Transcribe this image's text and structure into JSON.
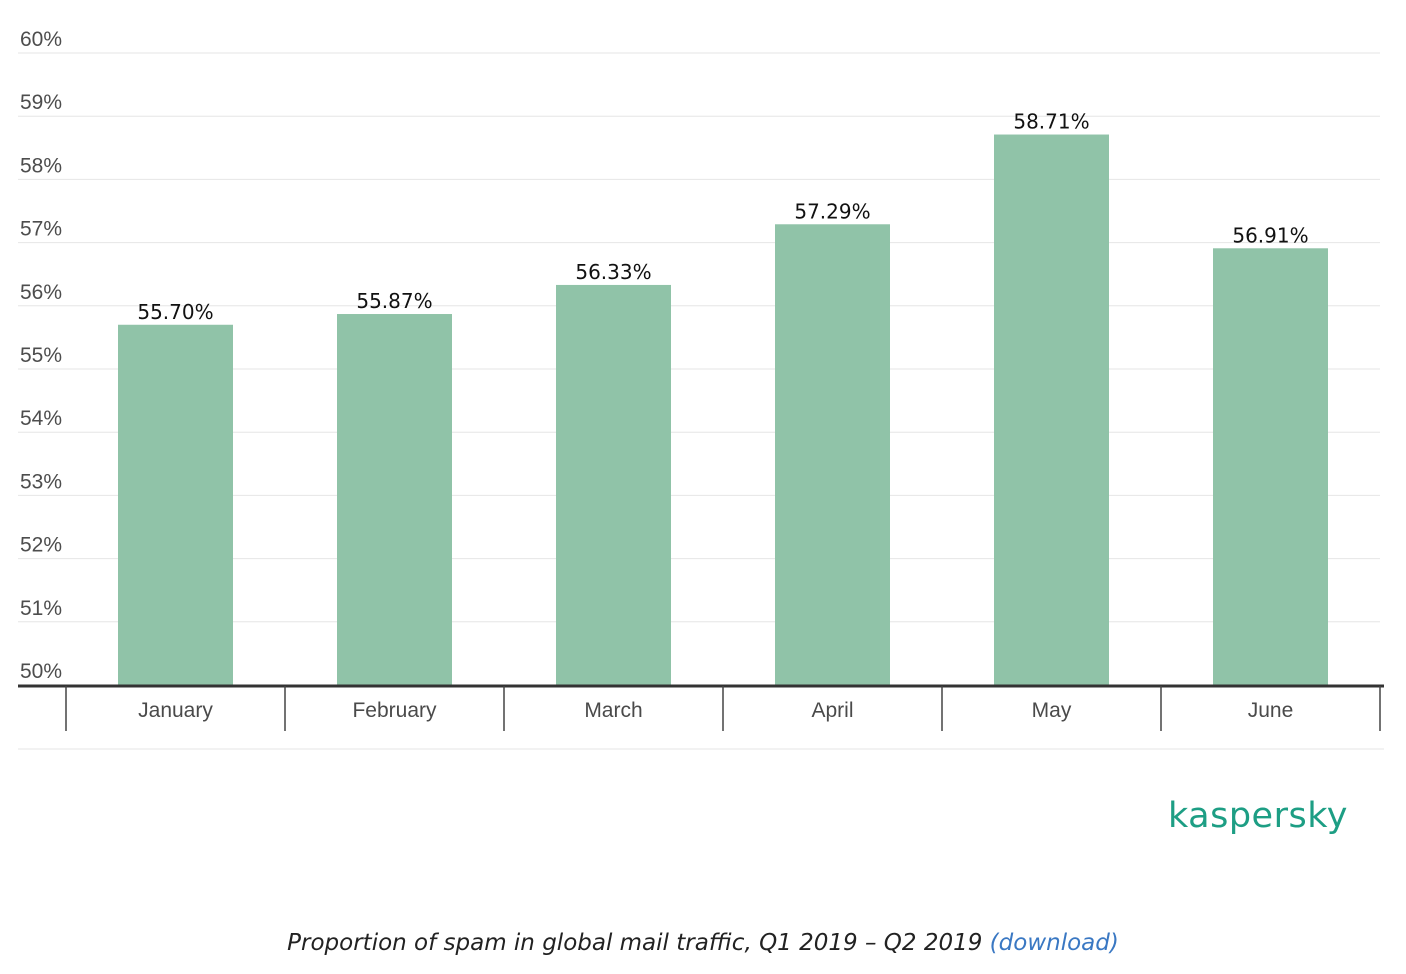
{
  "chart_data": {
    "type": "bar",
    "categories": [
      "January",
      "February",
      "March",
      "April",
      "May",
      "June"
    ],
    "values": [
      55.7,
      55.87,
      56.33,
      57.29,
      58.71,
      56.91
    ],
    "data_labels": [
      "55.70%",
      "55.87%",
      "56.33%",
      "57.29%",
      "58.71%",
      "56.91%"
    ],
    "ylim": [
      50,
      60
    ],
    "y_ticks": [
      50,
      51,
      52,
      53,
      54,
      55,
      56,
      57,
      58,
      59,
      60
    ],
    "y_tick_labels": [
      "50%",
      "51%",
      "52%",
      "53%",
      "54%",
      "55%",
      "56%",
      "57%",
      "58%",
      "59%",
      "60%"
    ],
    "grid": true,
    "bar_color": "#90c3a8"
  },
  "brand": {
    "logo_text": "kaspersky",
    "color": "#1d9e84"
  },
  "caption": {
    "text": "Proportion of spam in global mail traffic, Q1 2019 – Q2 2019",
    "link_text": "(download)",
    "link_color": "#3a78c3"
  }
}
